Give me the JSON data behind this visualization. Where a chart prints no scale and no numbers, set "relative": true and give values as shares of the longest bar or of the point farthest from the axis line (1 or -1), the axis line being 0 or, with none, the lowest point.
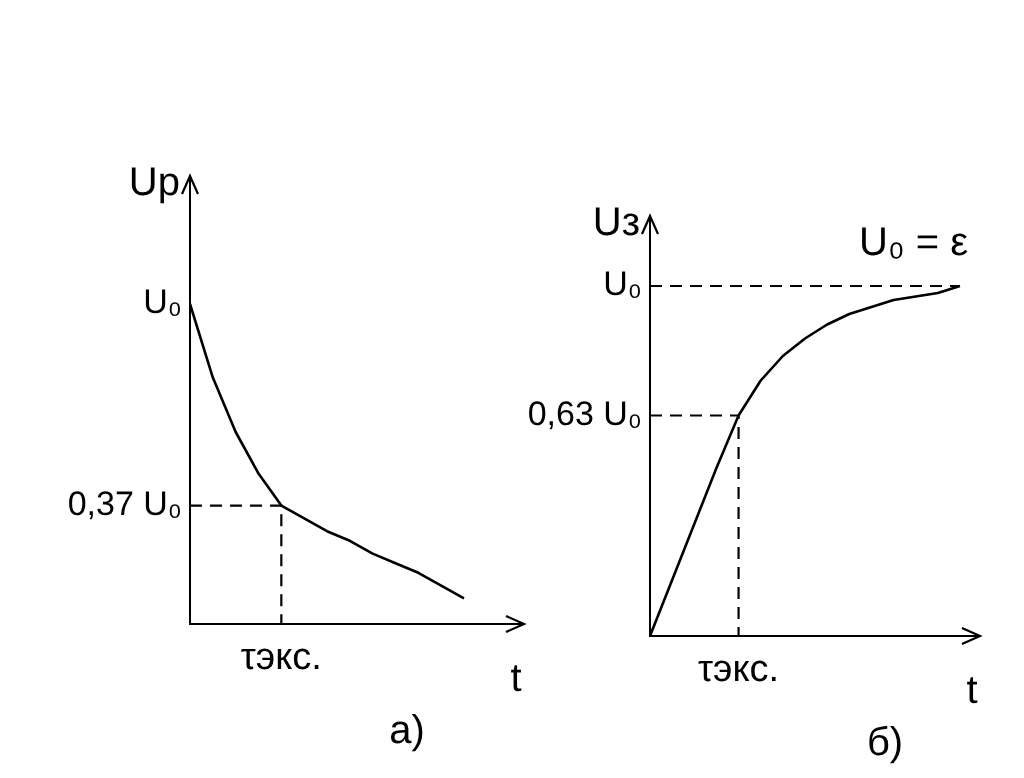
{
  "chart_data": [
    {
      "type": "line",
      "relative": true,
      "ylabel": "Uр",
      "xlabel": "t",
      "annotations": [
        "а)",
        "τэкс.",
        "U₀"
      ],
      "grid": false,
      "legend": false,
      "marker": "none",
      "categories": [
        null,
        null,
        null,
        null,
        null,
        null,
        null,
        null,
        null,
        null,
        null,
        null,
        null
      ],
      "series": [
        {
          "color": "#000000",
          "values": [
            1,
            0.77,
            0.6,
            0.47,
            0.37,
            0.33,
            0.29,
            0.26,
            0.22,
            0.19,
            0.16,
            0.12,
            0.08
          ]
        }
      ],
      "ref_lines": [
        {
          "axis": "y",
          "value": 0.37,
          "label": "0,37 U₀",
          "color": "#000000",
          "line_style": "dashed"
        }
      ]
    },
    {
      "type": "line",
      "relative": true,
      "ylabel": "Uз",
      "xlabel": "t",
      "annotations": [
        "б)",
        "U₀ = ε",
        "τэкс."
      ],
      "grid": false,
      "legend": false,
      "marker": "none",
      "categories": [
        null,
        null,
        null,
        null,
        null,
        null,
        null,
        null,
        null,
        null,
        null,
        null,
        null,
        null,
        null
      ],
      "series": [
        {
          "color": "#000000",
          "values": [
            0,
            0.16,
            0.32,
            0.48,
            0.63,
            0.73,
            0.8,
            0.85,
            0.89,
            0.92,
            0.94,
            0.96,
            0.97,
            0.98,
            1
          ]
        }
      ],
      "ref_lines": [
        {
          "axis": "y",
          "value": 0.63,
          "label": "0,63 U₀",
          "color": "#000000",
          "line_style": "dashed"
        },
        {
          "axis": "y",
          "value": 1,
          "label": "U₀",
          "color": "#000000",
          "line_style": "dashed"
        }
      ]
    }
  ]
}
